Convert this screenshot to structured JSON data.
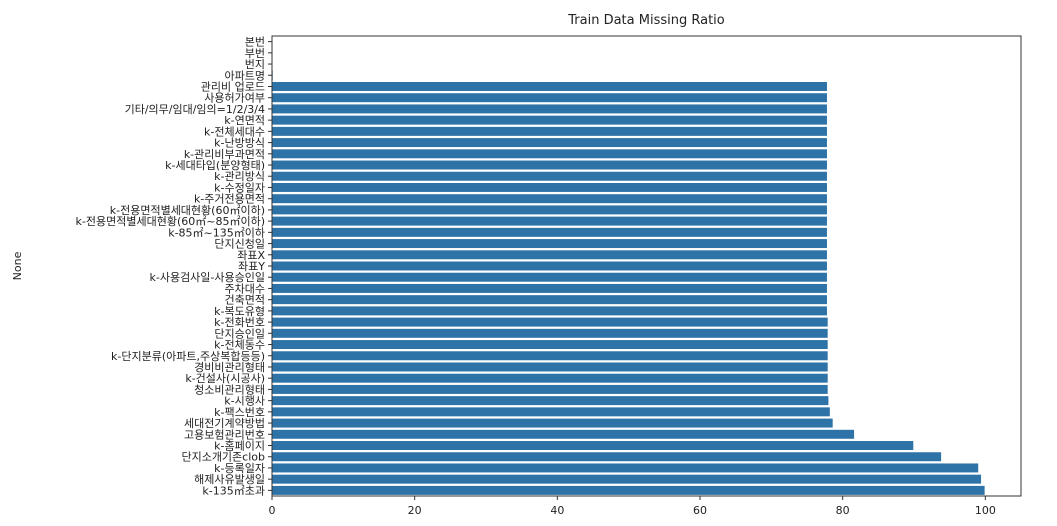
{
  "chart_data": {
    "type": "bar",
    "orientation": "horizontal",
    "title": "Train Data Missing Ratio",
    "xlabel": "",
    "ylabel": "None",
    "xlim": [
      0,
      105
    ],
    "xticks": [
      0,
      20,
      40,
      60,
      80,
      100
    ],
    "grid": false,
    "bar_color": "#2e73a8",
    "categories": [
      "본번",
      "부번",
      "번지",
      "아파트명",
      "관리비 업로드",
      "사용허가여부",
      "기타/의무/임대/임의=1/2/3/4",
      "k-연면적",
      "k-전체세대수",
      "k-난방방식",
      "k-관리비부과면적",
      "k-세대타입(분양형태)",
      "k-관리방식",
      "k-수정일자",
      "k-주거전용면적",
      "k-전용면적별세대현황(60㎡이하)",
      "k-전용면적별세대현황(60㎡~85㎡이하)",
      "k-85㎡~135㎡이하",
      "단지신청일",
      "좌표X",
      "좌표Y",
      "k-사용검사일-사용승인일",
      "주차대수",
      "건축면적",
      "k-복도유형",
      "k-전화번호",
      "단지승인일",
      "k-전체동수",
      "k-단지분류(아파트,주상복합등등)",
      "경비비관리형태",
      "k-건설사(시공사)",
      "청소비관리형태",
      "k-시행사",
      "k-팩스번호",
      "세대전기계약방법",
      "고용보험관리번호",
      "k-홈페이지",
      "단지소개기존clob",
      "k-등록일자",
      "해제사유발생일",
      "k-135㎡초과"
    ],
    "values": [
      0.0,
      0.0,
      0.0,
      0.1,
      77.8,
      77.8,
      77.8,
      77.8,
      77.8,
      77.8,
      77.8,
      77.8,
      77.8,
      77.8,
      77.8,
      77.8,
      77.8,
      77.8,
      77.8,
      77.8,
      77.8,
      77.8,
      77.8,
      77.8,
      77.8,
      77.9,
      77.9,
      77.9,
      77.9,
      77.9,
      77.9,
      77.9,
      78.0,
      78.2,
      78.6,
      81.6,
      89.9,
      93.8,
      99.0,
      99.4,
      99.9
    ]
  }
}
